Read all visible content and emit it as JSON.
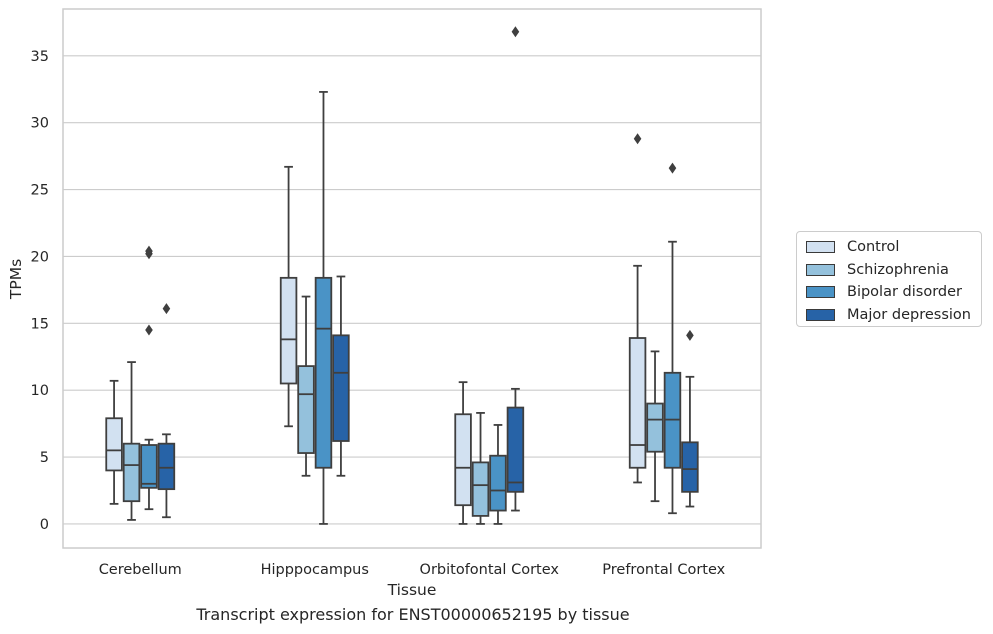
{
  "chart_data": {
    "type": "boxplot",
    "title": "",
    "caption": "Transcript expression for ENST00000652195 by tissue",
    "xlabel": "Tissue",
    "ylabel": "TPMs",
    "ylim": [
      -1.8,
      38.5
    ],
    "yticks": [
      0,
      5,
      10,
      15,
      20,
      25,
      30,
      35
    ],
    "grid": "horizontal",
    "legend_position": "right",
    "categories": [
      "Cerebellum",
      "Hipppocampus",
      "Orbitofontal Cortex",
      "Prefrontal Cortex"
    ],
    "series": [
      {
        "name": "Control",
        "color": "#d2e1f1",
        "boxes": [
          {
            "whislo": 1.5,
            "q1": 4.0,
            "med": 5.5,
            "q3": 7.9,
            "whishi": 10.7,
            "fliers": []
          },
          {
            "whislo": 7.3,
            "q1": 10.5,
            "med": 13.8,
            "q3": 18.4,
            "whishi": 26.7,
            "fliers": []
          },
          {
            "whislo": 0.0,
            "q1": 1.4,
            "med": 4.2,
            "q3": 8.2,
            "whishi": 10.6,
            "fliers": []
          },
          {
            "whislo": 3.1,
            "q1": 4.2,
            "med": 5.9,
            "q3": 13.9,
            "whishi": 19.3,
            "fliers": [
              28.8
            ]
          }
        ]
      },
      {
        "name": "Schizophrenia",
        "color": "#94c1dc",
        "boxes": [
          {
            "whislo": 0.3,
            "q1": 1.7,
            "med": 4.4,
            "q3": 6.0,
            "whishi": 12.1,
            "fliers": []
          },
          {
            "whislo": 3.6,
            "q1": 5.3,
            "med": 9.7,
            "q3": 11.8,
            "whishi": 17.0,
            "fliers": []
          },
          {
            "whislo": 0.0,
            "q1": 0.6,
            "med": 2.9,
            "q3": 4.6,
            "whishi": 8.3,
            "fliers": []
          },
          {
            "whislo": 1.7,
            "q1": 5.4,
            "med": 7.8,
            "q3": 9.0,
            "whishi": 12.9,
            "fliers": []
          }
        ]
      },
      {
        "name": "Bipolar disorder",
        "color": "#4a93c6",
        "boxes": [
          {
            "whislo": 1.1,
            "q1": 2.7,
            "med": 3.0,
            "q3": 5.9,
            "whishi": 6.3,
            "fliers": [
              20.2,
              20.4,
              14.5
            ]
          },
          {
            "whislo": 0.0,
            "q1": 4.2,
            "med": 14.6,
            "q3": 18.4,
            "whishi": 32.3,
            "fliers": []
          },
          {
            "whislo": 0.0,
            "q1": 1.0,
            "med": 2.5,
            "q3": 5.1,
            "whishi": 7.4,
            "fliers": []
          },
          {
            "whislo": 0.8,
            "q1": 4.2,
            "med": 7.8,
            "q3": 11.3,
            "whishi": 21.1,
            "fliers": [
              26.6
            ]
          }
        ]
      },
      {
        "name": "Major depression",
        "color": "#2763a7",
        "boxes": [
          {
            "whislo": 0.5,
            "q1": 2.6,
            "med": 4.2,
            "q3": 6.0,
            "whishi": 6.7,
            "fliers": [
              16.1
            ]
          },
          {
            "whislo": 3.6,
            "q1": 6.2,
            "med": 11.3,
            "q3": 14.1,
            "whishi": 18.5,
            "fliers": []
          },
          {
            "whislo": 1.0,
            "q1": 2.4,
            "med": 3.1,
            "q3": 8.7,
            "whishi": 10.1,
            "fliers": [
              36.8
            ]
          },
          {
            "whislo": 1.3,
            "q1": 2.4,
            "med": 4.1,
            "q3": 6.1,
            "whishi": 11.0,
            "fliers": [
              14.1
            ]
          }
        ]
      }
    ]
  }
}
